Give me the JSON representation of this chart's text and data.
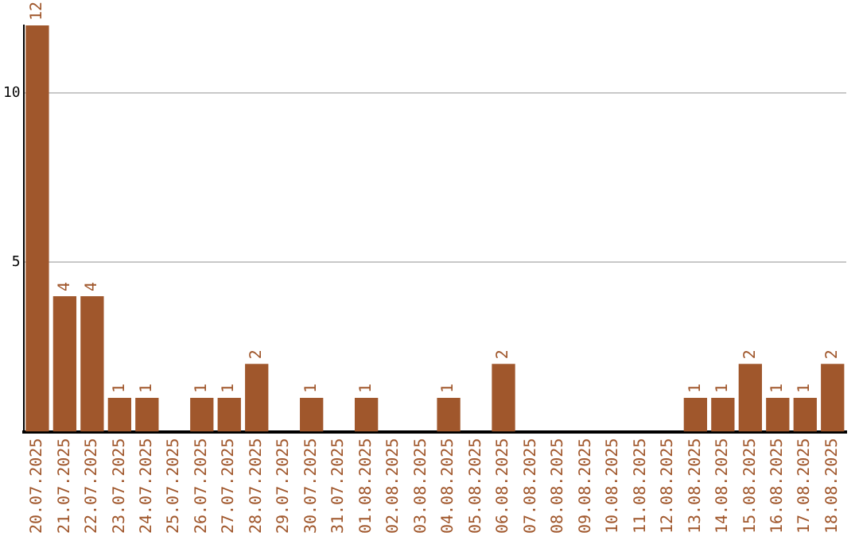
{
  "chart_data": {
    "type": "bar",
    "categories": [
      "20.07.2025",
      "21.07.2025",
      "22.07.2025",
      "23.07.2025",
      "24.07.2025",
      "25.07.2025",
      "26.07.2025",
      "27.07.2025",
      "28.07.2025",
      "29.07.2025",
      "30.07.2025",
      "31.07.2025",
      "01.08.2025",
      "02.08.2025",
      "03.08.2025",
      "04.08.2025",
      "05.08.2025",
      "06.08.2025",
      "07.08.2025",
      "08.08.2025",
      "09.08.2025",
      "10.08.2025",
      "11.08.2025",
      "12.08.2025",
      "13.08.2025",
      "14.08.2025",
      "15.08.2025",
      "16.08.2025",
      "17.08.2025",
      "18.08.2025"
    ],
    "values": [
      12,
      4,
      4,
      1,
      1,
      0,
      1,
      1,
      2,
      0,
      1,
      0,
      1,
      0,
      0,
      1,
      0,
      2,
      0,
      0,
      0,
      0,
      0,
      0,
      1,
      1,
      2,
      1,
      1,
      2
    ],
    "value_labels": [
      "12",
      "4",
      "4",
      "1",
      "1",
      null,
      "1",
      "1",
      "2",
      null,
      "1",
      null,
      "1",
      null,
      null,
      "1",
      null,
      "2",
      null,
      null,
      null,
      null,
      null,
      null,
      "1",
      "1",
      "2",
      "1",
      "1",
      "2"
    ],
    "color": "#a0572c",
    "ylim": [
      0,
      12
    ],
    "yticks": [
      5,
      10
    ],
    "grid": "y",
    "legend": false
  }
}
